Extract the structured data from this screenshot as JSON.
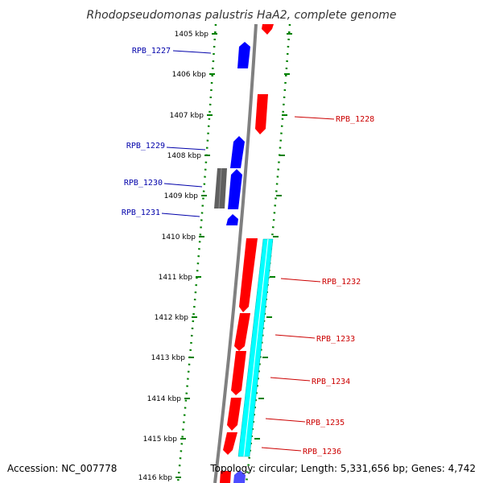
{
  "title": "Rhodopseudomonas palustris HaA2, complete genome",
  "footer": {
    "accession": "Accession: NC_007778",
    "topology": "Topology: circular; Length: 5,331,656 bp; Genes: 4,742"
  },
  "colors": {
    "backbone": "#808080",
    "forward_gene": "#0000ff",
    "reverse_gene": "#ff0000",
    "other_feature": "#606060",
    "highlight_region": "#00ffff",
    "ruler_dots": "#008000",
    "forward_label": "#0000aa",
    "reverse_label": "#cc0000"
  },
  "kbp_labels": [
    "1405 kbp",
    "1406 kbp",
    "1407 kbp",
    "1408 kbp",
    "1409 kbp",
    "1410 kbp",
    "1411 kbp",
    "1412 kbp",
    "1413 kbp",
    "1414 kbp",
    "1415 kbp",
    "1416 kbp"
  ],
  "genes": [
    {
      "id": "RPB_1227",
      "strand": "forward"
    },
    {
      "id": "RPB_1228",
      "strand": "reverse"
    },
    {
      "id": "RPB_1229",
      "strand": "forward"
    },
    {
      "id": "RPB_1230",
      "strand": "forward"
    },
    {
      "id": "RPB_1231",
      "strand": "forward"
    },
    {
      "id": "RPB_1232",
      "strand": "reverse"
    },
    {
      "id": "RPB_1233",
      "strand": "reverse"
    },
    {
      "id": "RPB_1234",
      "strand": "reverse"
    },
    {
      "id": "RPB_1235",
      "strand": "reverse"
    },
    {
      "id": "RPB_1236",
      "strand": "reverse"
    }
  ]
}
